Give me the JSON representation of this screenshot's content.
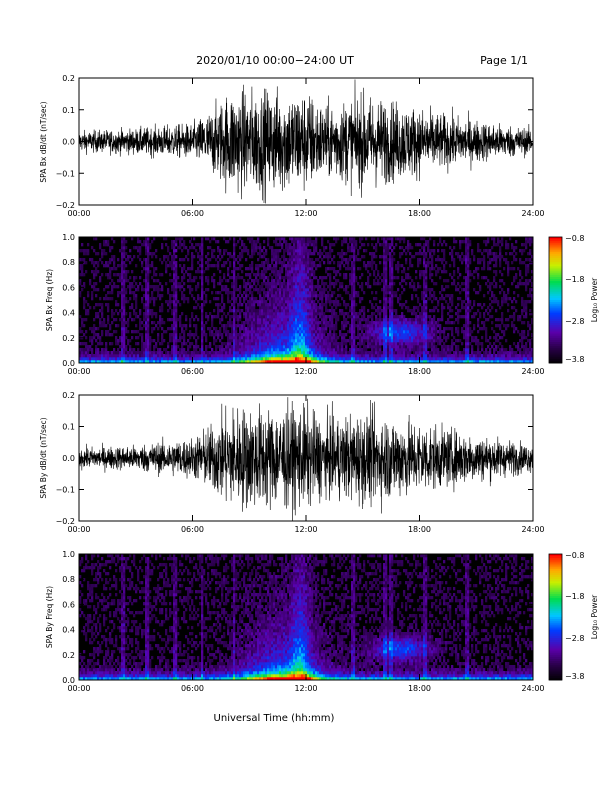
{
  "header": {
    "title": "2020/01/10  00:00−24:00 UT",
    "page": "Page 1/1"
  },
  "x_axis": {
    "title": "Universal Time (hh:mm)",
    "ticks": [
      "00:00",
      "06:00",
      "12:00",
      "18:00",
      "24:00"
    ]
  },
  "chart_data": [
    {
      "type": "line",
      "title": "",
      "ylabel": "SPA Bx dB/dt (nT/sec)",
      "xlabel": "",
      "xlim": [
        "00:00",
        "24:00"
      ],
      "ylim": [
        -0.2,
        0.2
      ],
      "yticks": [
        "0.2",
        "0.1",
        "0.0",
        "−0.1",
        "−0.2"
      ],
      "series": [
        {
          "color": "#000000",
          "envelope_hours": [
            0,
            3,
            6,
            7,
            8,
            9,
            12,
            13,
            15,
            17,
            19,
            22,
            24
          ],
          "envelope_amp": [
            0.04,
            0.05,
            0.07,
            0.12,
            0.2,
            0.2,
            0.2,
            0.14,
            0.18,
            0.15,
            0.11,
            0.07,
            0.05
          ]
        }
      ]
    },
    {
      "type": "heatmap",
      "title": "",
      "ylabel": "SPA Bx Freq (Hz)",
      "xlim": [
        "00:00",
        "24:00"
      ],
      "ylim": [
        0.0,
        1.0
      ],
      "yticks": [
        "1.0",
        "0.8",
        "0.6",
        "0.4",
        "0.2",
        "0.0"
      ],
      "colorbar": {
        "label": "Log₁₀ Power",
        "ticks": [
          "−0.8",
          "−1.8",
          "−2.8",
          "−3.8"
        ],
        "range": [
          -3.8,
          -0.8
        ]
      },
      "grid": "off"
    },
    {
      "type": "line",
      "title": "",
      "ylabel": "SPA By dB/dt (nT/sec)",
      "xlim": [
        "00:00",
        "24:00"
      ],
      "ylim": [
        -0.2,
        0.2
      ],
      "yticks": [
        "0.2",
        "0.1",
        "0.0",
        "−0.1",
        "−0.2"
      ],
      "series": [
        {
          "color": "#000000",
          "envelope_hours": [
            0,
            3,
            6,
            7,
            8,
            9,
            12,
            13,
            15,
            17,
            19,
            22,
            24
          ],
          "envelope_amp": [
            0.04,
            0.05,
            0.08,
            0.13,
            0.2,
            0.2,
            0.2,
            0.15,
            0.18,
            0.16,
            0.12,
            0.08,
            0.05
          ]
        }
      ]
    },
    {
      "type": "heatmap",
      "title": "",
      "ylabel": "SPA By Freq (Hz)",
      "xlim": [
        "00:00",
        "24:00"
      ],
      "ylim": [
        0.0,
        1.0
      ],
      "yticks": [
        "1.0",
        "0.8",
        "0.6",
        "0.4",
        "0.2",
        "0.0"
      ],
      "colorbar": {
        "label": "Log₁₀ Power",
        "ticks": [
          "−0.8",
          "−1.8",
          "−2.8",
          "−3.8"
        ],
        "range": [
          -3.8,
          -0.8
        ]
      },
      "grid": "off"
    }
  ]
}
